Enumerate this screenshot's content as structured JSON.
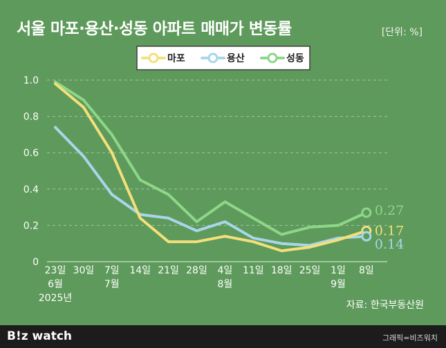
{
  "header": {
    "title": "서울 마포·용산·성동 아파트 매매가 변동률",
    "unit": "[단위: %]"
  },
  "source": "자료: 한국부동산원",
  "footer": {
    "logo": "B!z watch",
    "credit": "그래픽=비즈워치"
  },
  "colors": {
    "background": "#5e9a5b",
    "mapo": "#f4e07b",
    "yongsan": "#a9d6ea",
    "seongdong": "#8ed68a"
  },
  "chart_data": {
    "type": "line",
    "title": "서울 마포·용산·성동 아파트 매매가 변동률",
    "ylim": [
      0,
      1.0
    ],
    "yticks": [
      "0",
      "0.2",
      "0.4",
      "0.6",
      "0.8",
      "1.0"
    ],
    "categories": [
      [
        "23일",
        "6월",
        "2025년"
      ],
      [
        "30일"
      ],
      [
        "7일",
        "7월"
      ],
      [
        "14일"
      ],
      [
        "21일"
      ],
      [
        "28일"
      ],
      [
        "4일",
        "8월"
      ],
      [
        "11일"
      ],
      [
        "18일"
      ],
      [
        "25일"
      ],
      [
        "1일",
        "9월"
      ],
      [
        "8일"
      ]
    ],
    "series": [
      {
        "name": "마포",
        "color": "#f4e07b",
        "values": [
          0.98,
          0.85,
          0.6,
          0.24,
          0.11,
          0.11,
          0.14,
          0.11,
          0.06,
          0.08,
          0.12,
          0.17
        ],
        "end_label": "0.17"
      },
      {
        "name": "용산",
        "color": "#a9d6ea",
        "values": [
          0.74,
          0.58,
          0.37,
          0.26,
          0.24,
          0.17,
          0.22,
          0.13,
          0.1,
          0.09,
          0.13,
          0.14
        ],
        "end_label": "0.14"
      },
      {
        "name": "성동",
        "color": "#8ed68a",
        "values": [
          0.99,
          0.89,
          0.7,
          0.45,
          0.37,
          0.22,
          0.33,
          0.24,
          0.15,
          0.19,
          0.2,
          0.27
        ],
        "end_label": "0.27"
      }
    ],
    "grid": true,
    "legend": "top-center"
  }
}
